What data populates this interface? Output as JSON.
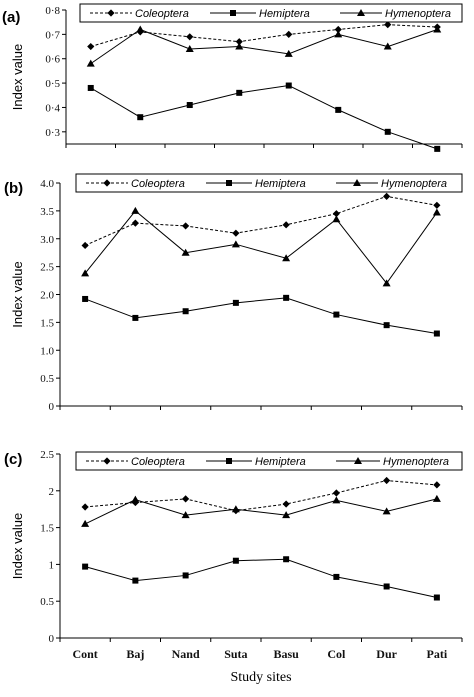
{
  "chart_data": [
    {
      "type": "line",
      "panel_label": "(a)",
      "ylabel": "Index value",
      "categories": [
        "Cont",
        "Baj",
        "Nand",
        "Suta",
        "Basu",
        "Col",
        "Dur",
        "Pati"
      ],
      "ylim": [
        0.25,
        0.8
      ],
      "yticks": [
        "0·3",
        "0·4",
        "0·5",
        "0·6",
        "0·7",
        "0·8"
      ],
      "ytick_values": [
        0.3,
        0.4,
        0.5,
        0.6,
        0.7,
        0.8
      ],
      "series": [
        {
          "name": "Coleoptera",
          "marker": "diamond",
          "dash": true,
          "values": [
            0.65,
            0.71,
            0.69,
            0.67,
            0.7,
            0.72,
            0.74,
            0.73
          ]
        },
        {
          "name": "Hemiptera",
          "marker": "square",
          "dash": false,
          "values": [
            0.48,
            0.36,
            0.41,
            0.46,
            0.49,
            0.39,
            0.3,
            0.23
          ]
        },
        {
          "name": "Hymenoptera",
          "marker": "triangle",
          "dash": false,
          "values": [
            0.58,
            0.72,
            0.64,
            0.65,
            0.62,
            0.7,
            0.65,
            0.72
          ]
        }
      ]
    },
    {
      "type": "line",
      "panel_label": "(b)",
      "ylabel": "Index value",
      "categories": [
        "Cont",
        "Baj",
        "Nand",
        "Suta",
        "Basu",
        "Col",
        "Dur",
        "Pati"
      ],
      "ylim": [
        0,
        4.0
      ],
      "yticks": [
        "0",
        "0.5",
        "1.0",
        "1.5",
        "2.0",
        "2.5",
        "3.0",
        "3.5",
        "4.0"
      ],
      "ytick_values": [
        0,
        0.5,
        1.0,
        1.5,
        2.0,
        2.5,
        3.0,
        3.5,
        4.0
      ],
      "series": [
        {
          "name": "Coleoptera",
          "marker": "diamond",
          "dash": true,
          "values": [
            2.88,
            3.28,
            3.23,
            3.1,
            3.25,
            3.45,
            3.76,
            3.6
          ]
        },
        {
          "name": "Hemiptera",
          "marker": "square",
          "dash": false,
          "values": [
            1.92,
            1.58,
            1.7,
            1.85,
            1.94,
            1.64,
            1.45,
            1.3
          ]
        },
        {
          "name": "Hymenoptera",
          "marker": "triangle",
          "dash": false,
          "values": [
            2.38,
            3.5,
            2.75,
            2.9,
            2.65,
            3.35,
            2.2,
            3.47
          ]
        }
      ]
    },
    {
      "type": "line",
      "panel_label": "(c)",
      "ylabel": "Index value",
      "xlabel": "Study sites",
      "categories": [
        "Cont",
        "Baj",
        "Nand",
        "Suta",
        "Basu",
        "Col",
        "Dur",
        "Pati"
      ],
      "ylim": [
        0,
        2.5
      ],
      "yticks": [
        "0",
        "0.5",
        "1",
        "1.5",
        "2",
        "2.5"
      ],
      "ytick_values": [
        0,
        0.5,
        1,
        1.5,
        2,
        2.5
      ],
      "series": [
        {
          "name": "Coleoptera",
          "marker": "diamond",
          "dash": true,
          "values": [
            1.78,
            1.84,
            1.89,
            1.73,
            1.82,
            1.97,
            2.14,
            2.08
          ]
        },
        {
          "name": "Hemiptera",
          "marker": "square",
          "dash": false,
          "values": [
            0.97,
            0.78,
            0.85,
            1.05,
            1.07,
            0.83,
            0.7,
            0.55
          ]
        },
        {
          "name": "Hymenoptera",
          "marker": "triangle",
          "dash": false,
          "values": [
            1.55,
            1.88,
            1.67,
            1.75,
            1.67,
            1.87,
            1.72,
            1.89
          ]
        }
      ]
    }
  ]
}
